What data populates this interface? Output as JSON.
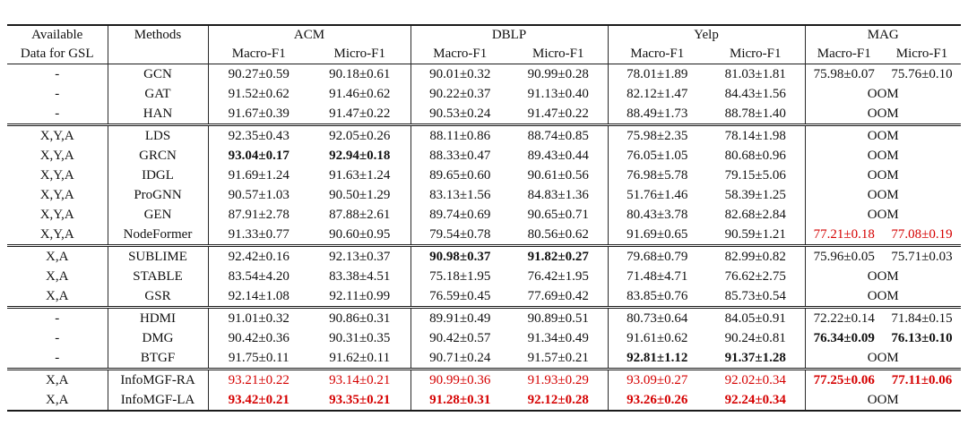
{
  "table": {
    "colors": {
      "highlight_red": "#d50000",
      "rule": "#1a1a1a",
      "text": "#111111"
    },
    "header": {
      "col1_line1": "Available",
      "col1_line2": "Data for GSL",
      "col2": "Methods",
      "groups": [
        "ACM",
        "DBLP",
        "Yelp",
        "MAG"
      ],
      "subheaders": [
        "Macro-F1",
        "Micro-F1"
      ]
    },
    "oom_label": "OOM",
    "blocks": [
      {
        "rows": [
          {
            "avail": "-",
            "method": "GCN",
            "cells": [
              {
                "v": "90.27±0.59"
              },
              {
                "v": "90.18±0.61"
              },
              {
                "v": "90.01±0.32"
              },
              {
                "v": "90.99±0.28"
              },
              {
                "v": "78.01±1.89"
              },
              {
                "v": "81.03±1.81"
              },
              {
                "v": "75.98±0.07"
              },
              {
                "v": "75.76±0.10"
              }
            ]
          },
          {
            "avail": "-",
            "method": "GAT",
            "cells": [
              {
                "v": "91.52±0.62"
              },
              {
                "v": "91.46±0.62"
              },
              {
                "v": "90.22±0.37"
              },
              {
                "v": "91.13±0.40"
              },
              {
                "v": "82.12±1.47"
              },
              {
                "v": "84.43±1.56"
              },
              {
                "v": "OOM",
                "span": 2
              }
            ]
          },
          {
            "avail": "-",
            "method": "HAN",
            "cells": [
              {
                "v": "91.67±0.39"
              },
              {
                "v": "91.47±0.22"
              },
              {
                "v": "90.53±0.24"
              },
              {
                "v": "91.47±0.22"
              },
              {
                "v": "88.49±1.73"
              },
              {
                "v": "88.78±1.40"
              },
              {
                "v": "OOM",
                "span": 2
              }
            ]
          }
        ]
      },
      {
        "rows": [
          {
            "avail": "X,Y,A",
            "method": "LDS",
            "cells": [
              {
                "v": "92.35±0.43"
              },
              {
                "v": "92.05±0.26"
              },
              {
                "v": "88.11±0.86"
              },
              {
                "v": "88.74±0.85"
              },
              {
                "v": "75.98±2.35"
              },
              {
                "v": "78.14±1.98"
              },
              {
                "v": "OOM",
                "span": 2
              }
            ]
          },
          {
            "avail": "X,Y,A",
            "method": "GRCN",
            "cells": [
              {
                "v": "93.04±0.17",
                "s": "b"
              },
              {
                "v": "92.94±0.18",
                "s": "b"
              },
              {
                "v": "88.33±0.47"
              },
              {
                "v": "89.43±0.44"
              },
              {
                "v": "76.05±1.05"
              },
              {
                "v": "80.68±0.96"
              },
              {
                "v": "OOM",
                "span": 2
              }
            ]
          },
          {
            "avail": "X,Y,A",
            "method": "IDGL",
            "cells": [
              {
                "v": "91.69±1.24"
              },
              {
                "v": "91.63±1.24"
              },
              {
                "v": "89.65±0.60"
              },
              {
                "v": "90.61±0.56"
              },
              {
                "v": "76.98±5.78"
              },
              {
                "v": "79.15±5.06"
              },
              {
                "v": "OOM",
                "span": 2
              }
            ]
          },
          {
            "avail": "X,Y,A",
            "method": "ProGNN",
            "cells": [
              {
                "v": "90.57±1.03"
              },
              {
                "v": "90.50±1.29"
              },
              {
                "v": "83.13±1.56"
              },
              {
                "v": "84.83±1.36"
              },
              {
                "v": "51.76±1.46"
              },
              {
                "v": "58.39±1.25"
              },
              {
                "v": "OOM",
                "span": 2
              }
            ]
          },
          {
            "avail": "X,Y,A",
            "method": "GEN",
            "cells": [
              {
                "v": "87.91±2.78"
              },
              {
                "v": "87.88±2.61"
              },
              {
                "v": "89.74±0.69"
              },
              {
                "v": "90.65±0.71"
              },
              {
                "v": "80.43±3.78"
              },
              {
                "v": "82.68±2.84"
              },
              {
                "v": "OOM",
                "span": 2
              }
            ]
          },
          {
            "avail": "X,Y,A",
            "method": "NodeFormer",
            "cells": [
              {
                "v": "91.33±0.77"
              },
              {
                "v": "90.60±0.95"
              },
              {
                "v": "79.54±0.78"
              },
              {
                "v": "80.56±0.62"
              },
              {
                "v": "91.69±0.65"
              },
              {
                "v": "90.59±1.21"
              },
              {
                "v": "77.21±0.18",
                "s": "r"
              },
              {
                "v": "77.08±0.19",
                "s": "r"
              }
            ]
          }
        ]
      },
      {
        "rows": [
          {
            "avail": "X,A",
            "method": "SUBLIME",
            "cells": [
              {
                "v": "92.42±0.16"
              },
              {
                "v": "92.13±0.37"
              },
              {
                "v": "90.98±0.37",
                "s": "b"
              },
              {
                "v": "91.82±0.27",
                "s": "b"
              },
              {
                "v": "79.68±0.79"
              },
              {
                "v": "82.99±0.82"
              },
              {
                "v": "75.96±0.05"
              },
              {
                "v": "75.71±0.03"
              }
            ]
          },
          {
            "avail": "X,A",
            "method": "STABLE",
            "cells": [
              {
                "v": "83.54±4.20"
              },
              {
                "v": "83.38±4.51"
              },
              {
                "v": "75.18±1.95"
              },
              {
                "v": "76.42±1.95"
              },
              {
                "v": "71.48±4.71"
              },
              {
                "v": "76.62±2.75"
              },
              {
                "v": "OOM",
                "span": 2
              }
            ]
          },
          {
            "avail": "X,A",
            "method": "GSR",
            "cells": [
              {
                "v": "92.14±1.08"
              },
              {
                "v": "92.11±0.99"
              },
              {
                "v": "76.59±0.45"
              },
              {
                "v": "77.69±0.42"
              },
              {
                "v": "83.85±0.76"
              },
              {
                "v": "85.73±0.54"
              },
              {
                "v": "OOM",
                "span": 2
              }
            ]
          }
        ]
      },
      {
        "rows": [
          {
            "avail": "-",
            "method": "HDMI",
            "cells": [
              {
                "v": "91.01±0.32"
              },
              {
                "v": "90.86±0.31"
              },
              {
                "v": "89.91±0.49"
              },
              {
                "v": "90.89±0.51"
              },
              {
                "v": "80.73±0.64"
              },
              {
                "v": "84.05±0.91"
              },
              {
                "v": "72.22±0.14"
              },
              {
                "v": "71.84±0.15"
              }
            ]
          },
          {
            "avail": "-",
            "method": "DMG",
            "cells": [
              {
                "v": "90.42±0.36"
              },
              {
                "v": "90.31±0.35"
              },
              {
                "v": "90.42±0.57"
              },
              {
                "v": "91.34±0.49"
              },
              {
                "v": "91.61±0.62"
              },
              {
                "v": "90.24±0.81"
              },
              {
                "v": "76.34±0.09",
                "s": "b"
              },
              {
                "v": "76.13±0.10",
                "s": "b"
              }
            ]
          },
          {
            "avail": "-",
            "method": "BTGF",
            "cells": [
              {
                "v": "91.75±0.11"
              },
              {
                "v": "91.62±0.11"
              },
              {
                "v": "90.71±0.24"
              },
              {
                "v": "91.57±0.21"
              },
              {
                "v": "92.81±1.12",
                "s": "b"
              },
              {
                "v": "91.37±1.28",
                "s": "b"
              },
              {
                "v": "OOM",
                "span": 2
              }
            ]
          }
        ]
      },
      {
        "rows": [
          {
            "avail": "X,A",
            "method": "InfoMGF-RA",
            "cells": [
              {
                "v": "93.21±0.22",
                "s": "r"
              },
              {
                "v": "93.14±0.21",
                "s": "r"
              },
              {
                "v": "90.99±0.36",
                "s": "r"
              },
              {
                "v": "91.93±0.29",
                "s": "r"
              },
              {
                "v": "93.09±0.27",
                "s": "r"
              },
              {
                "v": "92.02±0.34",
                "s": "r"
              },
              {
                "v": "77.25±0.06",
                "s": "rb"
              },
              {
                "v": "77.11±0.06",
                "s": "rb"
              }
            ]
          },
          {
            "avail": "X,A",
            "method": "InfoMGF-LA",
            "cells": [
              {
                "v": "93.42±0.21",
                "s": "rb"
              },
              {
                "v": "93.35±0.21",
                "s": "rb"
              },
              {
                "v": "91.28±0.31",
                "s": "rb"
              },
              {
                "v": "92.12±0.28",
                "s": "rb"
              },
              {
                "v": "93.26±0.26",
                "s": "rb"
              },
              {
                "v": "92.24±0.34",
                "s": "rb"
              },
              {
                "v": "OOM",
                "span": 2
              }
            ]
          }
        ]
      }
    ]
  }
}
